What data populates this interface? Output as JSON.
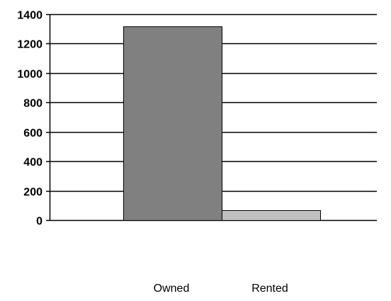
{
  "chart_data": {
    "type": "bar",
    "title": "",
    "xlabel": "",
    "ylabel": "",
    "categories": [
      "Owned",
      "Rented"
    ],
    "values": [
      1315,
      65
    ],
    "ylim": [
      0,
      1400
    ],
    "yticks": [
      0,
      200,
      400,
      600,
      800,
      1000,
      1200,
      1400
    ],
    "ytick_labels": [
      "0",
      "200",
      "400",
      "600",
      "800",
      "1000",
      "1200",
      "1400"
    ],
    "grid": true,
    "legend": {
      "placement": "bottom",
      "entries": [
        "Owned",
        "Rented"
      ]
    },
    "colors": {
      "bars": [
        "#808080",
        "#c0c0c0"
      ],
      "edge": "#000000",
      "grid": "#000000",
      "background": "#ffffff"
    }
  }
}
